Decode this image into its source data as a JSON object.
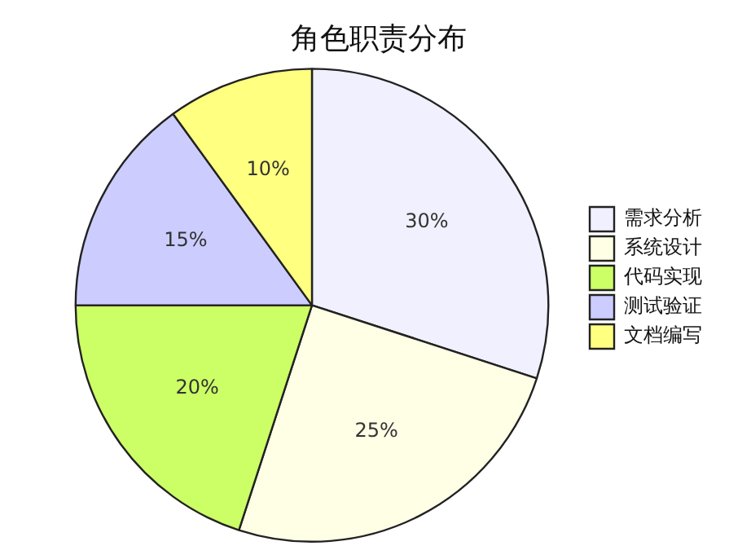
{
  "chart_data": {
    "type": "pie",
    "title": "角色职责分布",
    "categories": [
      "需求分析",
      "系统设计",
      "代码实现",
      "测试验证",
      "文档编写"
    ],
    "values": [
      30,
      25,
      20,
      15,
      10
    ],
    "value_labels": [
      "30%",
      "25%",
      "20%",
      "15%",
      "10%"
    ],
    "colors": [
      "#f0f0ff",
      "#ffffe6",
      "#ccff66",
      "#ccccff",
      "#ffff80"
    ],
    "legend": "right"
  }
}
